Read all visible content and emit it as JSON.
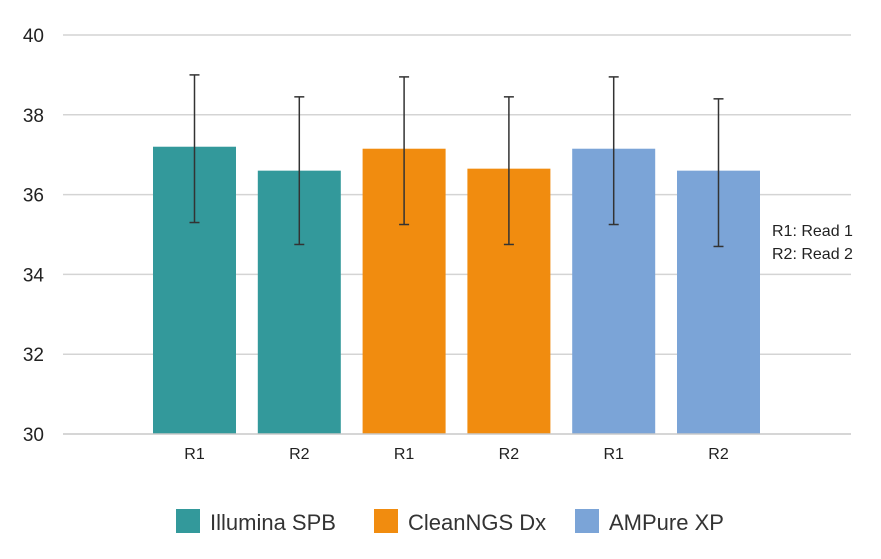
{
  "chart_data": {
    "type": "bar",
    "title": "",
    "xlabel": "",
    "ylabel": "",
    "ylim": [
      30,
      40
    ],
    "y_ticks": [
      30,
      32,
      34,
      36,
      38,
      40
    ],
    "grid": true,
    "legend_position": "bottom",
    "bars": [
      {
        "series": "Illumina SPB",
        "category": "R1",
        "value": 37.2,
        "error_low": 35.3,
        "error_high": 39.0
      },
      {
        "series": "Illumina SPB",
        "category": "R2",
        "value": 36.6,
        "error_low": 34.75,
        "error_high": 38.45
      },
      {
        "series": "CleanNGS Dx",
        "category": "R1",
        "value": 37.15,
        "error_low": 35.25,
        "error_high": 38.95
      },
      {
        "series": "CleanNGS Dx",
        "category": "R2",
        "value": 36.65,
        "error_low": 34.75,
        "error_high": 38.45
      },
      {
        "series": "AMPure XP",
        "category": "R1",
        "value": 37.15,
        "error_low": 35.25,
        "error_high": 38.95
      },
      {
        "series": "AMPure XP",
        "category": "R2",
        "value": 36.6,
        "error_low": 34.7,
        "error_high": 38.4
      }
    ],
    "series": [
      {
        "name": "Illumina SPB",
        "color": "#33999b"
      },
      {
        "name": "CleanNGS Dx",
        "color": "#f18c0f"
      },
      {
        "name": "AMPure XP",
        "color": "#7ba4d7"
      }
    ],
    "annotations": [
      "R1: Read 1",
      "R2: Read 2"
    ]
  }
}
